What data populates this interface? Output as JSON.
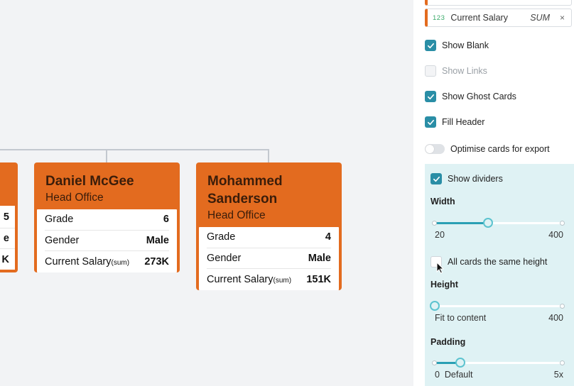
{
  "cards": [
    {
      "name": "",
      "office": "",
      "rows": [
        {
          "label": "",
          "value": "5"
        },
        {
          "label": "",
          "value": "e"
        },
        {
          "label": "",
          "value": "K"
        }
      ]
    },
    {
      "name": "Daniel McGee",
      "office": "Head Office",
      "rows": [
        {
          "label": "Grade",
          "sub": "",
          "value": "6"
        },
        {
          "label": "Gender",
          "sub": "",
          "value": "Male"
        },
        {
          "label": "Current Salary",
          "sub": "(sum)",
          "value": "273K"
        }
      ]
    },
    {
      "name_line1": "Mohammed",
      "name_line2": "Sanderson",
      "office": "Head Office",
      "rows": [
        {
          "label": "Grade",
          "sub": "",
          "value": "4"
        },
        {
          "label": "Gender",
          "sub": "",
          "value": "Male"
        },
        {
          "label": "Current Salary",
          "sub": "(sum)",
          "value": "151K"
        }
      ]
    }
  ],
  "panel": {
    "field_chip": {
      "type_icon": "123",
      "name": "Current Salary",
      "aggregate": "SUM",
      "remove": "×"
    },
    "options": {
      "show_blank": {
        "label": "Show Blank",
        "checked": true
      },
      "show_links": {
        "label": "Show Links",
        "checked": false,
        "disabled": true
      },
      "show_ghost_cards": {
        "label": "Show Ghost Cards",
        "checked": true
      },
      "fill_header": {
        "label": "Fill Header",
        "checked": true
      },
      "optimise_export": {
        "label": "Optimise cards for export",
        "on": false
      }
    },
    "dividers": {
      "show_dividers": {
        "label": "Show dividers",
        "checked": true
      },
      "width": {
        "label": "Width",
        "min": "20",
        "max": "400",
        "value_fraction": 0.42
      },
      "same_height": {
        "label": "All cards the same height",
        "checked": false
      },
      "height": {
        "label": "Height",
        "min": "Fit to content",
        "max": "400",
        "value_fraction": 0.0
      },
      "padding": {
        "label": "Padding",
        "min": "0",
        "default": "Default",
        "max": "5x",
        "value_fraction": 0.2
      }
    },
    "accent_color": "#2a8ea6",
    "card_color": "#e36b1f"
  }
}
